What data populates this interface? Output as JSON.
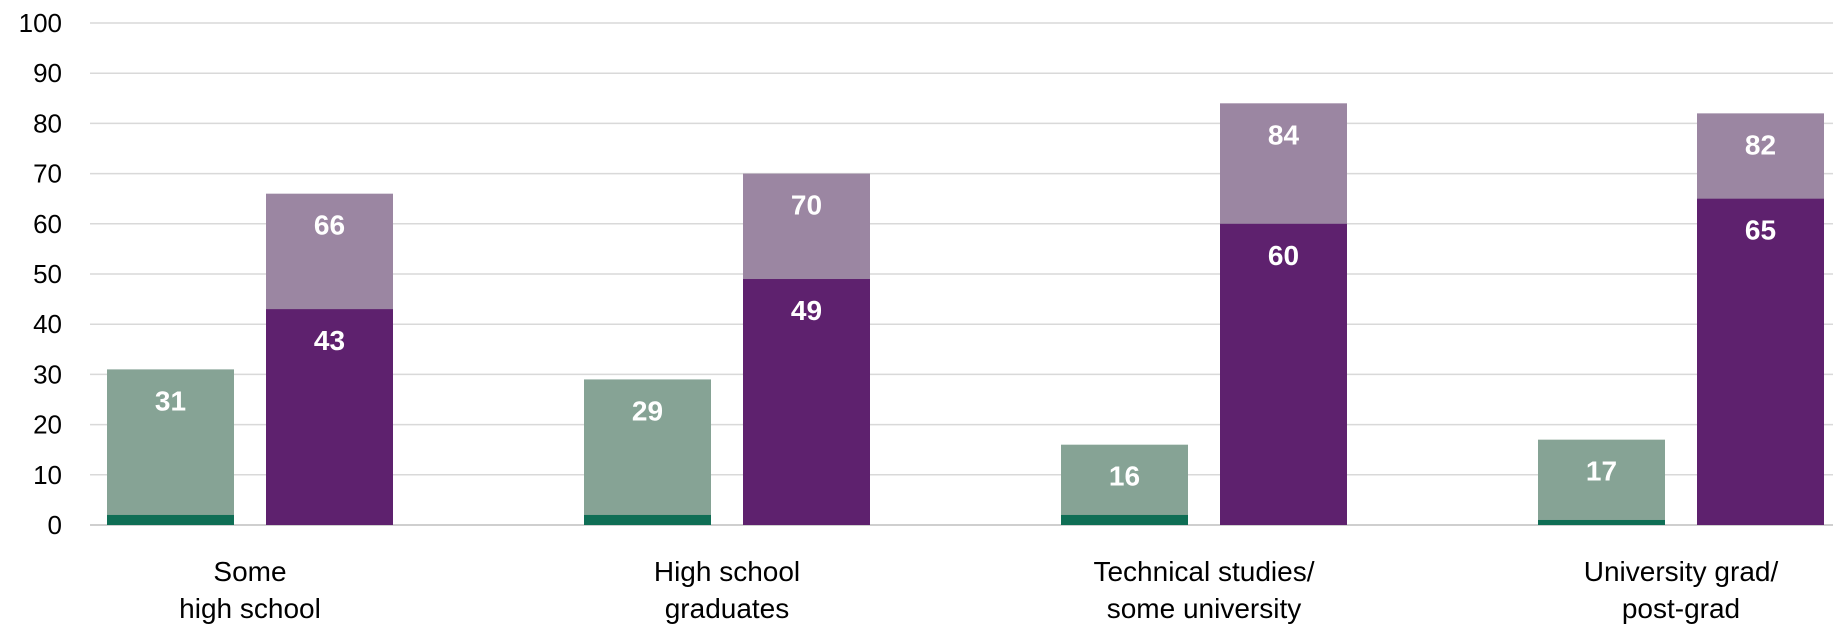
{
  "chart_data": {
    "type": "bar",
    "stacked_overlay": true,
    "categories": [
      [
        "Some",
        "high school"
      ],
      [
        "High school",
        "graduates"
      ],
      [
        "Technical studies/",
        "some university"
      ],
      [
        "University grad/",
        "post-grad"
      ]
    ],
    "groups": [
      {
        "bars": [
          {
            "segments": [
              {
                "value": 2,
                "color": "#0f6e55",
                "show_label": false
              },
              {
                "value": 31,
                "color": "#86a395",
                "label": "31",
                "show_label": true
              }
            ]
          },
          {
            "segments": [
              {
                "value": 43,
                "color": "#5e216e",
                "label": "43",
                "show_label": true
              },
              {
                "value": 66,
                "color": "#9b86a2",
                "label": "66",
                "show_label": true
              }
            ]
          }
        ]
      },
      {
        "bars": [
          {
            "segments": [
              {
                "value": 2,
                "color": "#0f6e55",
                "show_label": false
              },
              {
                "value": 29,
                "color": "#86a395",
                "label": "29",
                "show_label": true
              }
            ]
          },
          {
            "segments": [
              {
                "value": 49,
                "color": "#5e216e",
                "label": "49",
                "show_label": true
              },
              {
                "value": 70,
                "color": "#9b86a2",
                "label": "70",
                "show_label": true
              }
            ]
          }
        ]
      },
      {
        "bars": [
          {
            "segments": [
              {
                "value": 2,
                "color": "#0f6e55",
                "show_label": false
              },
              {
                "value": 16,
                "color": "#86a395",
                "label": "16",
                "show_label": true
              }
            ]
          },
          {
            "segments": [
              {
                "value": 60,
                "color": "#5e216e",
                "label": "60",
                "show_label": true
              },
              {
                "value": 84,
                "color": "#9b86a2",
                "label": "84",
                "show_label": true
              }
            ]
          }
        ]
      },
      {
        "bars": [
          {
            "segments": [
              {
                "value": 1,
                "color": "#0f6e55",
                "show_label": false
              },
              {
                "value": 17,
                "color": "#86a395",
                "label": "17",
                "show_label": true
              }
            ]
          },
          {
            "segments": [
              {
                "value": 65,
                "color": "#5e216e",
                "label": "65",
                "show_label": true
              },
              {
                "value": 82,
                "color": "#9b86a2",
                "label": "82",
                "show_label": true
              }
            ]
          }
        ]
      }
    ],
    "ylim": [
      0,
      100
    ],
    "yticks": [
      "0",
      "10",
      "20",
      "30",
      "40",
      "50",
      "60",
      "70",
      "80",
      "90",
      "100"
    ],
    "grid": true,
    "title": "",
    "xlabel": "",
    "ylabel": ""
  }
}
